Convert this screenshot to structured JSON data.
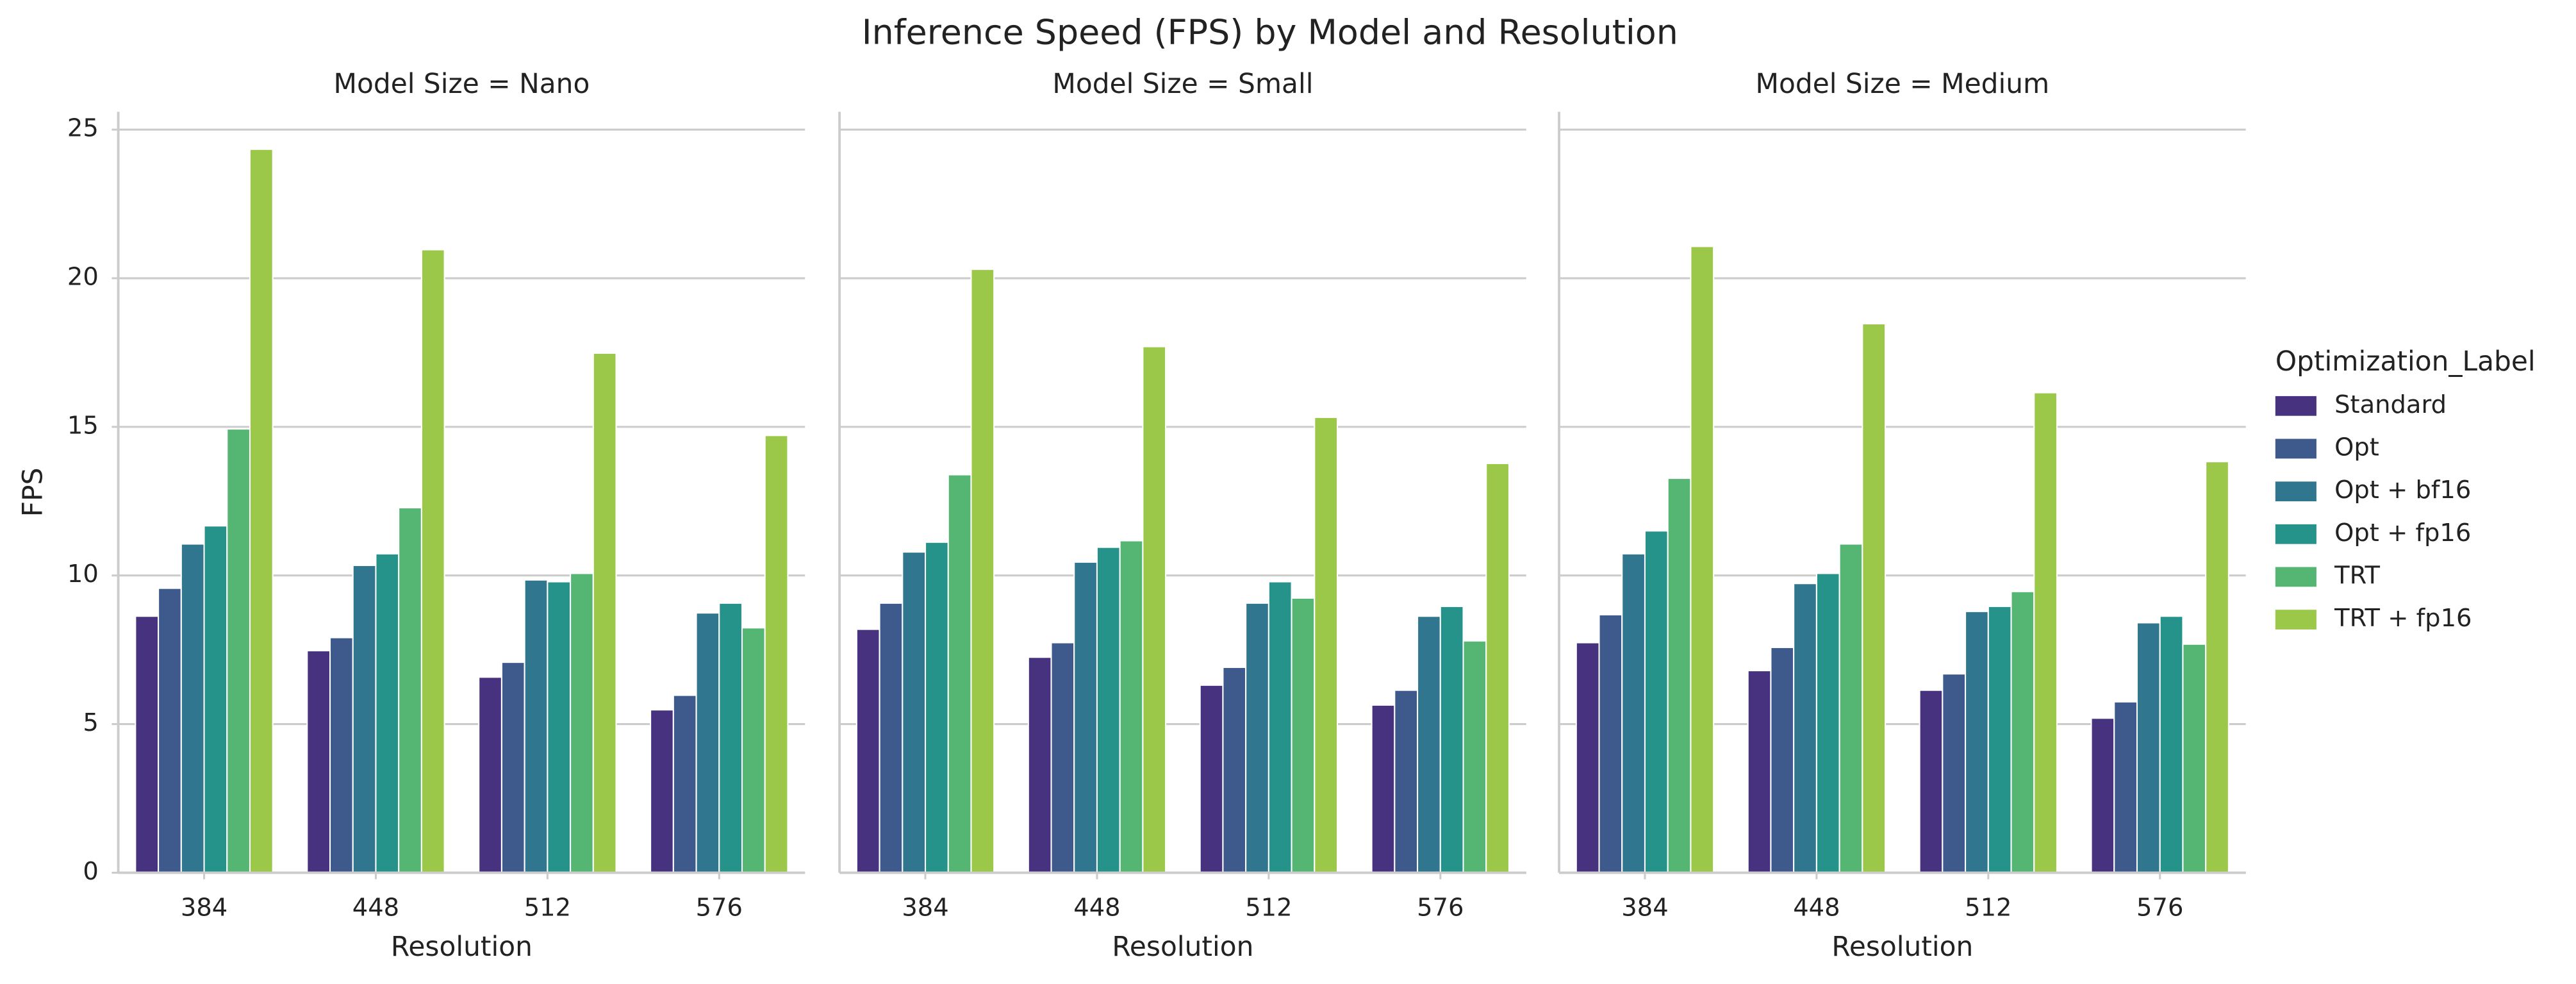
{
  "title": "Inference Speed (FPS) by Model and Resolution",
  "legend_title": "Optimization_Label",
  "chart_data": [
    {
      "type": "bar",
      "title": "Model Size = Nano",
      "x_label": "Resolution",
      "y_label": "FPS",
      "categories": [
        "384",
        "448",
        "512",
        "576"
      ],
      "series": [
        {
          "name": "Standard",
          "color": "#46327e",
          "values": [
            8.63,
            7.47,
            6.58,
            5.48
          ]
        },
        {
          "name": "Opt",
          "color": "#3e5a8c",
          "values": [
            9.57,
            7.91,
            7.08,
            5.97
          ]
        },
        {
          "name": "Opt + bf16",
          "color": "#2f768e",
          "values": [
            11.06,
            10.34,
            9.85,
            8.74
          ]
        },
        {
          "name": "Opt + fp16",
          "color": "#25938a",
          "values": [
            11.67,
            10.73,
            9.79,
            9.07
          ]
        },
        {
          "name": "TRT",
          "color": "#55b673",
          "values": [
            14.93,
            12.28,
            10.07,
            8.24
          ]
        },
        {
          "name": "TRT + fp16",
          "color": "#9cc84a",
          "values": [
            24.34,
            20.96,
            17.48,
            14.71
          ]
        }
      ],
      "ylim": [
        0,
        25.6
      ],
      "yticks": [
        0,
        5,
        10,
        15,
        20,
        25
      ],
      "grid": true
    },
    {
      "type": "bar",
      "title": "Model Size = Small",
      "x_label": "Resolution",
      "categories": [
        "384",
        "448",
        "512",
        "576"
      ],
      "series": [
        {
          "name": "Standard",
          "color": "#46327e",
          "values": [
            8.19,
            7.25,
            6.31,
            5.64
          ]
        },
        {
          "name": "Opt",
          "color": "#3e5a8c",
          "values": [
            9.07,
            7.74,
            6.91,
            6.14
          ]
        },
        {
          "name": "Opt + bf16",
          "color": "#2f768e",
          "values": [
            10.79,
            10.45,
            9.07,
            8.63
          ]
        },
        {
          "name": "Opt + fp16",
          "color": "#25938a",
          "values": [
            11.12,
            10.95,
            9.79,
            8.96
          ]
        },
        {
          "name": "TRT",
          "color": "#55b673",
          "values": [
            13.39,
            11.17,
            9.24,
            7.8
          ]
        },
        {
          "name": "TRT + fp16",
          "color": "#9cc84a",
          "values": [
            20.3,
            17.7,
            15.32,
            13.77
          ]
        }
      ],
      "ylim": [
        0,
        25.6
      ],
      "yticks": [
        0,
        5,
        10,
        15,
        20,
        25
      ],
      "grid": true
    },
    {
      "type": "bar",
      "title": "Model Size = Medium",
      "x_label": "Resolution",
      "categories": [
        "384",
        "448",
        "512",
        "576"
      ],
      "series": [
        {
          "name": "Standard",
          "color": "#46327e",
          "values": [
            7.74,
            6.8,
            6.14,
            5.2
          ]
        },
        {
          "name": "Opt",
          "color": "#3e5a8c",
          "values": [
            8.68,
            7.58,
            6.69,
            5.75
          ]
        },
        {
          "name": "Opt + bf16",
          "color": "#2f768e",
          "values": [
            10.73,
            9.73,
            8.79,
            8.41
          ]
        },
        {
          "name": "Opt + fp16",
          "color": "#25938a",
          "values": [
            11.5,
            10.07,
            8.96,
            8.63
          ]
        },
        {
          "name": "TRT",
          "color": "#55b673",
          "values": [
            13.27,
            11.06,
            9.46,
            7.69
          ]
        },
        {
          "name": "TRT + fp16",
          "color": "#9cc84a",
          "values": [
            21.07,
            18.47,
            16.15,
            13.83
          ]
        }
      ],
      "ylim": [
        0,
        25.6
      ],
      "yticks": [
        0,
        5,
        10,
        15,
        20,
        25
      ],
      "grid": true
    }
  ]
}
